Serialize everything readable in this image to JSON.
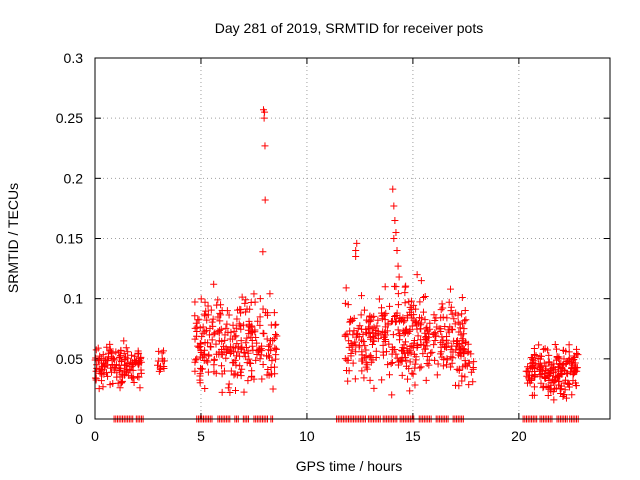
{
  "chart_data": {
    "type": "scatter",
    "title": "Day 281 of 2019, SRMTID for receiver pots",
    "xlabel": "GPS time / hours",
    "ylabel": "SRMTID / TECUs",
    "xlim": [
      0,
      24.3
    ],
    "ylim": [
      0,
      0.3
    ],
    "x_ticks": [
      0,
      5,
      10,
      15,
      20
    ],
    "x_tick_labels": [
      "0",
      "5",
      "10",
      "15",
      "20"
    ],
    "y_ticks": [
      0,
      0.05,
      0.1,
      0.15,
      0.2,
      0.25,
      0.3
    ],
    "y_tick_labels": [
      "0",
      "0.05",
      "0.1",
      "0.15",
      "0.2",
      "0.25",
      "0.3"
    ],
    "grid": true,
    "marker": "+",
    "color": "#ff0000",
    "clusters": [
      {
        "x_range": [
          0.0,
          2.2
        ],
        "y_range": [
          0.018,
          0.07
        ],
        "count": 140
      },
      {
        "x_range": [
          2.9,
          3.3
        ],
        "y_range": [
          0.032,
          0.065
        ],
        "count": 14
      },
      {
        "x_range": [
          4.7,
          8.6
        ],
        "y_range": [
          0.012,
          0.112
        ],
        "count": 260
      },
      {
        "x_range": [
          11.8,
          17.5
        ],
        "y_range": [
          0.015,
          0.12
        ],
        "count": 380
      },
      {
        "x_range": [
          17.1,
          17.9
        ],
        "y_range": [
          0.015,
          0.08
        ],
        "count": 30
      },
      {
        "x_range": [
          20.3,
          22.8
        ],
        "y_range": [
          0.012,
          0.068
        ],
        "count": 200
      }
    ],
    "outliers": [
      {
        "x": 7.95,
        "y": 0.257
      },
      {
        "x": 8.0,
        "y": 0.255
      },
      {
        "x": 7.98,
        "y": 0.25
      },
      {
        "x": 8.02,
        "y": 0.227
      },
      {
        "x": 8.03,
        "y": 0.182
      },
      {
        "x": 7.92,
        "y": 0.139
      },
      {
        "x": 7.5,
        "y": 0.104
      },
      {
        "x": 7.8,
        "y": 0.1
      },
      {
        "x": 5.6,
        "y": 0.112
      },
      {
        "x": 12.35,
        "y": 0.146
      },
      {
        "x": 12.3,
        "y": 0.14
      },
      {
        "x": 12.3,
        "y": 0.135
      },
      {
        "x": 14.05,
        "y": 0.191
      },
      {
        "x": 14.1,
        "y": 0.177
      },
      {
        "x": 14.15,
        "y": 0.165
      },
      {
        "x": 14.2,
        "y": 0.155
      },
      {
        "x": 14.1,
        "y": 0.15
      },
      {
        "x": 14.25,
        "y": 0.14
      },
      {
        "x": 14.3,
        "y": 0.127
      },
      {
        "x": 14.35,
        "y": 0.118
      },
      {
        "x": 14.2,
        "y": 0.11
      },
      {
        "x": 15.2,
        "y": 0.12
      },
      {
        "x": 15.4,
        "y": 0.115
      },
      {
        "x": 15.5,
        "y": 0.101
      },
      {
        "x": 14.0,
        "y": 0.02
      }
    ],
    "zero_band_segments": [
      [
        0.9,
        1.8
      ],
      [
        1.95,
        2.3
      ],
      [
        4.8,
        5.6
      ],
      [
        5.8,
        6.4
      ],
      [
        6.6,
        6.8
      ],
      [
        7.0,
        7.3
      ],
      [
        7.5,
        8.2
      ],
      [
        8.3,
        8.4
      ],
      [
        11.4,
        12.8
      ],
      [
        12.9,
        13.5
      ],
      [
        13.6,
        14.3
      ],
      [
        14.4,
        15.1
      ],
      [
        15.3,
        15.9
      ],
      [
        16.1,
        16.7
      ],
      [
        16.9,
        17.4
      ],
      [
        20.2,
        20.9
      ],
      [
        21.0,
        21.6
      ],
      [
        21.8,
        22.3
      ],
      [
        22.4,
        22.8
      ]
    ]
  }
}
